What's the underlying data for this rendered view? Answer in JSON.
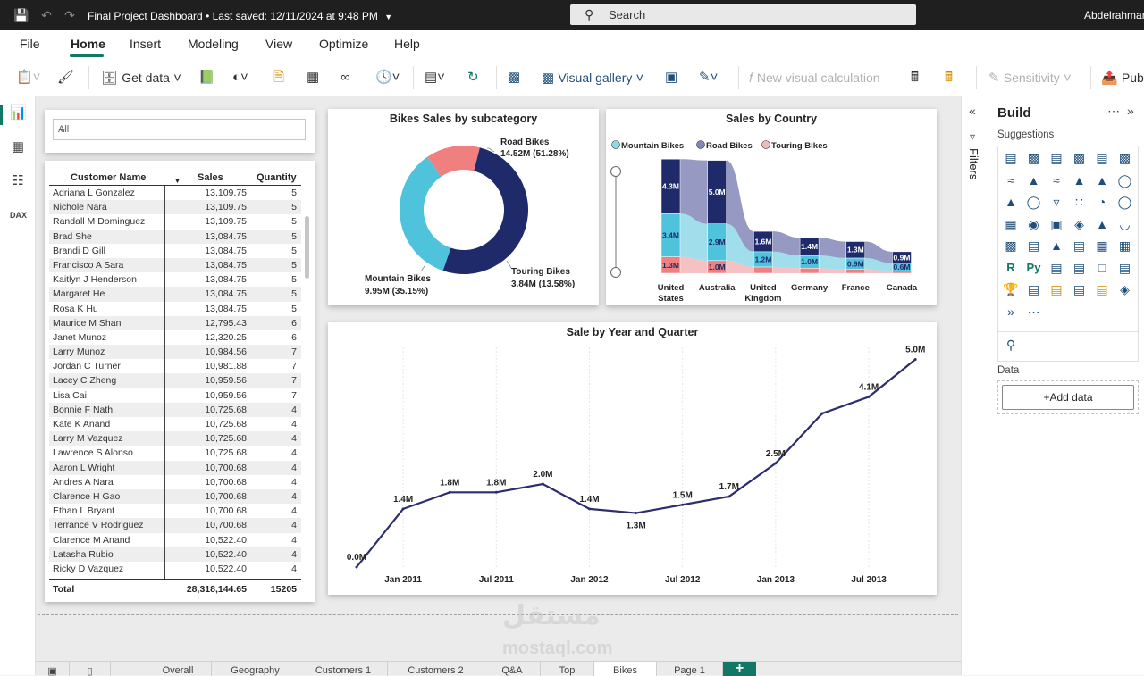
{
  "titlebar": {
    "doc_title": "Final Project Dashboard",
    "saved": "Last saved: 12/11/2024 at 9:48 PM",
    "search_placeholder": "Search",
    "user": "Abdelrahman"
  },
  "menu": [
    "File",
    "Home",
    "Insert",
    "Modeling",
    "View",
    "Optimize",
    "Help"
  ],
  "ribbon": {
    "get_data": "Get data",
    "visual_gallery": "Visual gallery",
    "new_visual_calc": "New visual calculation",
    "sensitivity": "Sensitivity",
    "publish": "Publish"
  },
  "slicer": {
    "value": "All"
  },
  "table": {
    "headers": [
      "Customer Name",
      "Sales",
      "Quantity"
    ],
    "rows": [
      [
        "Adriana L Gonzalez",
        "13,109.75",
        "5"
      ],
      [
        "Nichole Nara",
        "13,109.75",
        "5"
      ],
      [
        "Randall M Dominguez",
        "13,109.75",
        "5"
      ],
      [
        "Brad She",
        "13,084.75",
        "5"
      ],
      [
        "Brandi D Gill",
        "13,084.75",
        "5"
      ],
      [
        "Francisco A Sara",
        "13,084.75",
        "5"
      ],
      [
        "Kaitlyn J Henderson",
        "13,084.75",
        "5"
      ],
      [
        "Margaret He",
        "13,084.75",
        "5"
      ],
      [
        "Rosa K Hu",
        "13,084.75",
        "5"
      ],
      [
        "Maurice M Shan",
        "12,795.43",
        "6"
      ],
      [
        "Janet Munoz",
        "12,320.25",
        "6"
      ],
      [
        "Larry Munoz",
        "10,984.56",
        "7"
      ],
      [
        "Jordan C Turner",
        "10,981.88",
        "7"
      ],
      [
        "Lacey C Zheng",
        "10,959.56",
        "7"
      ],
      [
        "Lisa Cai",
        "10,959.56",
        "7"
      ],
      [
        "Bonnie F Nath",
        "10,725.68",
        "4"
      ],
      [
        "Kate K Anand",
        "10,725.68",
        "4"
      ],
      [
        "Larry M Vazquez",
        "10,725.68",
        "4"
      ],
      [
        "Lawrence S Alonso",
        "10,725.68",
        "4"
      ],
      [
        "Aaron L Wright",
        "10,700.68",
        "4"
      ],
      [
        "Andres A Nara",
        "10,700.68",
        "4"
      ],
      [
        "Clarence H Gao",
        "10,700.68",
        "4"
      ],
      [
        "Ethan L Bryant",
        "10,700.68",
        "4"
      ],
      [
        "Terrance V Rodriguez",
        "10,700.68",
        "4"
      ],
      [
        "Clarence M Anand",
        "10,522.40",
        "4"
      ],
      [
        "Latasha Rubio",
        "10,522.40",
        "4"
      ],
      [
        "Ricky D Vazquez",
        "10,522.40",
        "4"
      ]
    ],
    "total_label": "Total",
    "total_sales": "28,318,144.65",
    "total_qty": "15205"
  },
  "chart_data": [
    {
      "type": "pie",
      "title": "Bikes Sales by subcategory",
      "labels": [
        "Road Bikes",
        "Mountain Bikes",
        "Touring Bikes"
      ],
      "values": [
        14.52,
        9.95,
        3.84
      ],
      "data_labels": [
        "14.52M (51.28%)",
        "9.95M (35.15%)",
        "3.84M (13.58%)"
      ],
      "colors": [
        "#1f2a6b",
        "#4fc3dc",
        "#f08080"
      ]
    },
    {
      "type": "area",
      "title": "Sales by Country",
      "categories": [
        "United States",
        "Australia",
        "United Kingdom",
        "Germany",
        "France",
        "Canada"
      ],
      "series": [
        {
          "name": "Mountain Bikes",
          "values": [
            3.4,
            2.9,
            1.2,
            1.0,
            0.9,
            0.6
          ],
          "color": "#8fd8e8"
        },
        {
          "name": "Road Bikes",
          "values": [
            4.3,
            5.0,
            1.6,
            1.4,
            1.3,
            0.9
          ],
          "color": "#8488b8"
        },
        {
          "name": "Touring Bikes",
          "values": [
            1.3,
            1.0,
            0.5,
            0.4,
            0.3,
            0.2
          ],
          "color": "#f4b6b8"
        }
      ],
      "data_labels": {
        "Road Bikes": [
          "4.3M",
          "5.0M",
          "1.6M",
          "1.4M",
          "1.3M",
          "0.9M"
        ],
        "Mountain Bikes": [
          "3.4M",
          "2.9M",
          "1.2M",
          "1.0M",
          "0.9M",
          "0.6M"
        ],
        "Touring Bikes": [
          "1.3M",
          "1.0M",
          "",
          "",
          "",
          ""
        ]
      }
    },
    {
      "type": "line",
      "title": "Sale by Year and Quarter",
      "x": [
        "2010 Q4",
        "2011 Q1",
        "2011 Q2",
        "2011 Q3",
        "2011 Q4",
        "2012 Q1",
        "2012 Q2",
        "2012 Q3",
        "2012 Q4",
        "2013 Q1",
        "2013 Q2",
        "2013 Q3",
        "2013 Q4"
      ],
      "values": [
        0.0,
        1.4,
        1.8,
        1.8,
        2.0,
        1.4,
        1.3,
        1.5,
        1.7,
        2.5,
        3.7,
        4.1,
        5.0
      ],
      "data_labels": [
        "0.0M",
        "1.4M",
        "1.8M",
        "1.8M",
        "2.0M",
        "1.4M",
        "1.3M",
        "1.5M",
        "1.7M",
        "2.5M",
        "",
        "4.1M",
        "5.0M"
      ],
      "x_ticks": [
        "Jan 2011",
        "Jul 2011",
        "Jan 2012",
        "Jul 2012",
        "Jan 2013",
        "Jul 2013"
      ],
      "color": "#2b2d6e"
    }
  ],
  "filters_label": "Filters",
  "build": {
    "title": "Build",
    "suggestions": "Suggestions",
    "data_label": "Data",
    "add_data": "+Add data"
  },
  "page_tabs": [
    "Overall",
    "Geography",
    "Customers 1",
    "Customers 2",
    "Q&A",
    "Top",
    "Bikes",
    "Page 1"
  ],
  "watermark": {
    "logo": "مستقل",
    "site": "mostaql.com"
  }
}
